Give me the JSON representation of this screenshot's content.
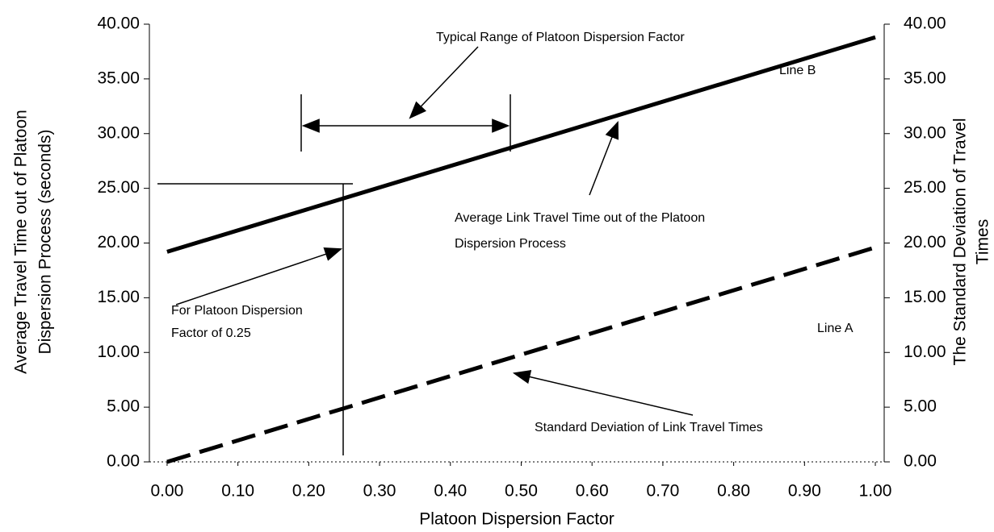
{
  "chart_data": {
    "type": "line",
    "xlabel": "Platoon Dispersion Factor",
    "ylabel": [
      "Average Travel Time out of Platoon",
      "Dispersion Process (seconds)"
    ],
    "y2label": [
      "The Standard Deviation of Travel",
      "Times"
    ],
    "series": [
      {
        "name": "Line B",
        "color": "#000000",
        "linestyle": "solid",
        "x": [
          0,
          1
        ],
        "values": [
          19.2,
          38.8
        ]
      },
      {
        "name": "Line A",
        "color": "#000000",
        "linestyle": "dashed",
        "axis": "y2",
        "x": [
          0,
          1
        ],
        "values": [
          0,
          19.6
        ]
      }
    ],
    "xlim": [
      -0.025,
      1.0125
    ],
    "xticks": [
      {
        "value": 0,
        "label": "0.00"
      },
      {
        "value": 0.1,
        "label": "0.10"
      },
      {
        "value": 0.2,
        "label": "0.20"
      },
      {
        "value": 0.3,
        "label": "0.30"
      },
      {
        "value": 0.4,
        "label": "0.40"
      },
      {
        "value": 0.5,
        "label": "0.50"
      },
      {
        "value": 0.6,
        "label": "0.60"
      },
      {
        "value": 0.7,
        "label": "0.70"
      },
      {
        "value": 0.8,
        "label": "0.80"
      },
      {
        "value": 0.9,
        "label": "0.90"
      },
      {
        "value": 1,
        "label": "1.00"
      }
    ],
    "ylim": [
      0,
      40
    ],
    "yticks": [
      {
        "value": 0,
        "label": "0.00"
      },
      {
        "value": 5,
        "label": "5.00"
      },
      {
        "value": 10,
        "label": "10.00"
      },
      {
        "value": 15,
        "label": "15.00"
      },
      {
        "value": 20,
        "label": "20.00"
      },
      {
        "value": 25,
        "label": "25.00"
      },
      {
        "value": 30,
        "label": "30.00"
      },
      {
        "value": 35,
        "label": "35.00"
      },
      {
        "value": 40,
        "label": "40.00"
      }
    ],
    "y2lim": [
      0,
      40
    ],
    "y2ticks": [
      {
        "value": 0,
        "label": "0.00"
      },
      {
        "value": 5,
        "label": "5.00"
      },
      {
        "value": 10,
        "label": "10.00"
      },
      {
        "value": 15,
        "label": "15.00"
      },
      {
        "value": 20,
        "label": "20.00"
      },
      {
        "value": 25,
        "label": "25.00"
      },
      {
        "value": 30,
        "label": "30.00"
      },
      {
        "value": 35,
        "label": "35.00"
      },
      {
        "value": 40,
        "label": "40.00"
      }
    ],
    "annotations": [
      "Typical Range of Platoon Dispersion Factor",
      "Line B",
      [
        "Average Link Travel Time out of the Platoon",
        "Dispersion Process"
      ],
      [
        "For Platoon Dispersion",
        "Factor of 0.25"
      ],
      "Line A",
      "Standard Deviation of Link Travel Times"
    ]
  }
}
